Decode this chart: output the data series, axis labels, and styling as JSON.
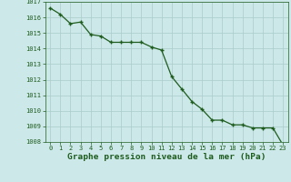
{
  "x": [
    0,
    1,
    2,
    3,
    4,
    5,
    6,
    7,
    8,
    9,
    10,
    11,
    12,
    13,
    14,
    15,
    16,
    17,
    18,
    19,
    20,
    21,
    22,
    23
  ],
  "y": [
    1016.6,
    1016.2,
    1015.6,
    1015.7,
    1014.9,
    1014.8,
    1014.4,
    1014.4,
    1014.4,
    1014.4,
    1014.1,
    1013.9,
    1012.2,
    1011.4,
    1010.6,
    1010.1,
    1009.4,
    1009.4,
    1009.1,
    1009.1,
    1008.9,
    1008.9,
    1008.9,
    1007.8
  ],
  "ylim": [
    1008,
    1017
  ],
  "xlim_min": -0.5,
  "xlim_max": 23.5,
  "yticks": [
    1008,
    1009,
    1010,
    1011,
    1012,
    1013,
    1014,
    1015,
    1016,
    1017
  ],
  "xticks": [
    0,
    1,
    2,
    3,
    4,
    5,
    6,
    7,
    8,
    9,
    10,
    11,
    12,
    13,
    14,
    15,
    16,
    17,
    18,
    19,
    20,
    21,
    22,
    23
  ],
  "line_color": "#1e5c1e",
  "marker_color": "#1e5c1e",
  "bg_color": "#cce8e8",
  "grid_color": "#aacccc",
  "xlabel": "Graphe pression niveau de la mer (hPa)",
  "xlabel_color": "#1e5c1e",
  "tick_color": "#1e5c1e",
  "tick_fontsize": 5.0,
  "xlabel_fontsize": 6.8,
  "marker_size": 3.0,
  "line_width": 0.9
}
